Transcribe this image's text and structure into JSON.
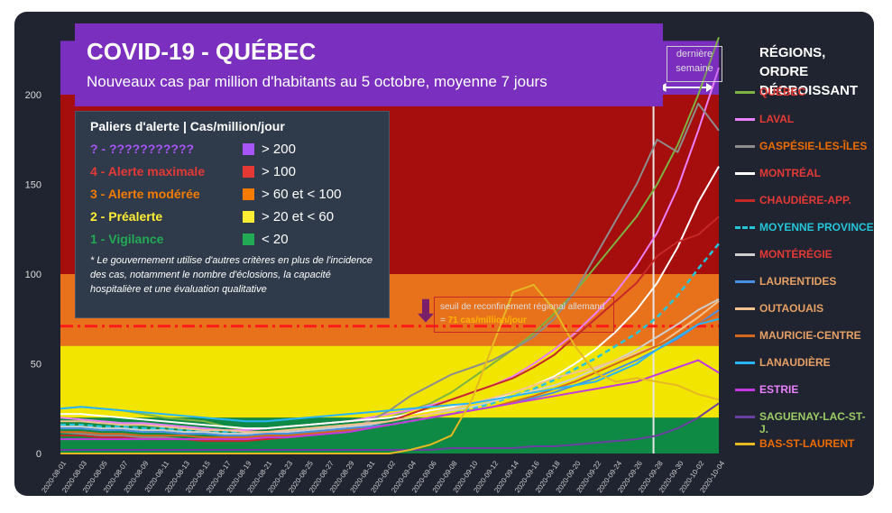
{
  "header": {
    "title": "COVID-19 - QUÉBEC",
    "subtitle": "Nouveaux cas par million d'habitants au 5 octobre, moyenne 7 jours"
  },
  "legend": {
    "title": "Paliers d'alerte | Cas/million/jour",
    "levels": [
      {
        "label": "? - ???????????",
        "threshold": "> 200",
        "color": "#a855f7"
      },
      {
        "label": "4 - Alerte maximale",
        "threshold": "> 100",
        "color": "#e53935"
      },
      {
        "label": "3 - Alerte modérée",
        "threshold": "> 60 et < 100",
        "color": "#f57c00"
      },
      {
        "label": "2 - Préalerte",
        "threshold": "> 20 et < 60",
        "color": "#ffee33"
      },
      {
        "label": "1 - Vigilance",
        "threshold": "< 20",
        "color": "#22aa55"
      }
    ],
    "note": "* Le gouvernement utilise d'autres critères en plus de l'incidence des cas, notamment le nombre d'éclosions, la capacité hospitalière et une évaluation qualitative"
  },
  "last_week_label": "dernière semaine",
  "threshold_note": {
    "text_before": "seuil de reconfinement régional allemand = ",
    "value_text": "71 cas/million/jour"
  },
  "regions_title": "RÉGIONS, ORDRE DÉCROISSANT",
  "chart_data": {
    "type": "line",
    "ylim": [
      0,
      230
    ],
    "yticks": [
      0,
      50,
      100,
      150,
      200
    ],
    "x_labels": [
      "2020-08-01",
      "2020-08-03",
      "2020-08-05",
      "2020-08-07",
      "2020-08-09",
      "2020-08-11",
      "2020-08-13",
      "2020-08-15",
      "2020-08-17",
      "2020-08-19",
      "2020-08-21",
      "2020-08-23",
      "2020-08-25",
      "2020-08-27",
      "2020-08-29",
      "2020-08-31",
      "2020-09-02",
      "2020-09-04",
      "2020-09-06",
      "2020-09-08",
      "2020-09-10",
      "2020-09-12",
      "2020-09-14",
      "2020-09-16",
      "2020-09-18",
      "2020-09-20",
      "2020-09-22",
      "2020-09-24",
      "2020-09-26",
      "2020-09-28",
      "2020-09-30",
      "2020-10-02",
      "2020-10-04"
    ],
    "alert_bands": [
      {
        "from": 0,
        "to": 20,
        "color": "#0f8a44"
      },
      {
        "from": 20,
        "to": 60,
        "color": "#f2e600"
      },
      {
        "from": 60,
        "to": 100,
        "color": "#e8721c"
      },
      {
        "from": 100,
        "to": 200,
        "color": "#a60d0d"
      },
      {
        "from": 200,
        "to": 230,
        "color": "#7b2fbe"
      }
    ],
    "threshold_line": 71,
    "last_week_start": "2020-09-28",
    "series": [
      {
        "name": "QUÉBEC",
        "color": "#7cb342",
        "text_color": "#e53935",
        "values": [
          25,
          26,
          25,
          24,
          22,
          20,
          19,
          18,
          15,
          13,
          14,
          15,
          16,
          17,
          18,
          19,
          20,
          24,
          28,
          34,
          42,
          50,
          58,
          67,
          78,
          90,
          104,
          118,
          132,
          150,
          172,
          200,
          232
        ]
      },
      {
        "name": "LAVAL",
        "color": "#ea80fc",
        "text_color": "#e53935",
        "values": [
          20,
          19,
          18,
          17,
          17,
          16,
          15,
          14,
          13,
          13,
          14,
          15,
          16,
          17,
          18,
          20,
          22,
          24,
          27,
          30,
          34,
          38,
          43,
          50,
          58,
          67,
          78,
          90,
          105,
          123,
          148,
          180,
          215
        ]
      },
      {
        "name": "GASPÉSIE-LES-ÎLES",
        "color": "#8d8d8d",
        "text_color": "#ef6c00",
        "values": [
          12,
          11,
          10,
          10,
          9,
          9,
          8,
          8,
          8,
          8,
          8,
          9,
          10,
          12,
          14,
          18,
          24,
          32,
          38,
          44,
          48,
          52,
          58,
          65,
          75,
          90,
          110,
          130,
          150,
          175,
          168,
          195,
          180
        ]
      },
      {
        "name": "MONTRÉAL",
        "color": "#ffffff",
        "text_color": "#e53935",
        "values": [
          22,
          22,
          21,
          20,
          19,
          18,
          17,
          16,
          15,
          14,
          14,
          15,
          16,
          17,
          18,
          19,
          20,
          22,
          24,
          26,
          28,
          30,
          34,
          38,
          43,
          50,
          58,
          68,
          80,
          95,
          115,
          140,
          160
        ]
      },
      {
        "name": "CHAUDIÈRE-APP.",
        "color": "#c62828",
        "text_color": "#e53935",
        "values": [
          10,
          10,
          9,
          9,
          8,
          8,
          8,
          7,
          7,
          7,
          8,
          9,
          10,
          12,
          14,
          16,
          18,
          22,
          26,
          30,
          34,
          38,
          42,
          48,
          55,
          65,
          75,
          85,
          95,
          110,
          118,
          122,
          132
        ]
      },
      {
        "name": "MOYENNE PROVINCE",
        "color": "#26c6da",
        "text_color": "#26c6da",
        "dashed": true,
        "values": [
          16,
          16,
          15,
          15,
          14,
          14,
          13,
          12,
          12,
          11,
          11,
          12,
          12,
          13,
          14,
          15,
          16,
          18,
          20,
          22,
          25,
          28,
          32,
          36,
          41,
          47,
          53,
          60,
          67,
          76,
          88,
          103,
          117
        ]
      },
      {
        "name": "MONTÉRÉGIE",
        "color": "#cfcfcf",
        "text_color": "#e53935",
        "values": [
          15,
          15,
          14,
          14,
          13,
          13,
          12,
          12,
          11,
          11,
          12,
          12,
          13,
          14,
          15,
          16,
          18,
          20,
          22,
          24,
          26,
          29,
          32,
          35,
          38,
          42,
          47,
          52,
          58,
          65,
          72,
          80,
          86
        ]
      },
      {
        "name": "LAURENTIDES",
        "color": "#4a90e2",
        "text_color": "#e8a064",
        "values": [
          14,
          14,
          13,
          13,
          12,
          12,
          11,
          11,
          10,
          10,
          11,
          11,
          12,
          13,
          14,
          15,
          16,
          18,
          20,
          22,
          24,
          26,
          28,
          31,
          34,
          38,
          42,
          47,
          52,
          58,
          64,
          72,
          80
        ]
      },
      {
        "name": "OUTAOUAIS",
        "color": "#f4c28f",
        "text_color": "#e8a064",
        "values": [
          18,
          18,
          17,
          16,
          16,
          15,
          14,
          13,
          13,
          12,
          12,
          13,
          14,
          15,
          16,
          17,
          18,
          20,
          22,
          25,
          28,
          31,
          34,
          38,
          42,
          45,
          48,
          52,
          56,
          60,
          68,
          76,
          85
        ]
      },
      {
        "name": "MAURICIE-CENTRE",
        "color": "#d2691e",
        "text_color": "#e8a064",
        "values": [
          12,
          12,
          11,
          11,
          10,
          10,
          10,
          9,
          9,
          9,
          10,
          10,
          11,
          12,
          13,
          14,
          16,
          18,
          20,
          22,
          24,
          26,
          29,
          32,
          36,
          40,
          45,
          50,
          55,
          60,
          66,
          72,
          78
        ]
      },
      {
        "name": "LANAUDIÈRE",
        "color": "#29b6f6",
        "text_color": "#e8a064",
        "values": [
          25,
          26,
          25,
          24,
          23,
          22,
          21,
          20,
          19,
          18,
          18,
          19,
          20,
          21,
          22,
          23,
          24,
          25,
          26,
          27,
          28,
          30,
          32,
          34,
          36,
          38,
          40,
          45,
          50,
          58,
          65,
          72,
          75
        ]
      },
      {
        "name": "ESTRIE",
        "color": "#c239e0",
        "text_color": "#ea80fc",
        "values": [
          8,
          8,
          8,
          8,
          8,
          8,
          8,
          8,
          8,
          8,
          9,
          9,
          10,
          11,
          12,
          14,
          16,
          18,
          20,
          22,
          24,
          26,
          28,
          30,
          32,
          34,
          36,
          38,
          40,
          44,
          48,
          52,
          45
        ]
      },
      {
        "name": "SAGUENAY-LAC-ST-J.",
        "color": "#6a3fa0",
        "text_color": "#9ccc65",
        "values": [
          2,
          2,
          2,
          2,
          2,
          2,
          2,
          2,
          2,
          2,
          2,
          2,
          2,
          2,
          2,
          2,
          2,
          2,
          2,
          3,
          3,
          3,
          3,
          4,
          4,
          5,
          6,
          7,
          8,
          10,
          14,
          20,
          28
        ]
      },
      {
        "name": "BAS-ST-LAURENT",
        "color": "#e6b822",
        "text_color": "#ef6c00",
        "values": [
          0,
          0,
          0,
          0,
          0,
          0,
          0,
          0,
          0,
          0,
          0,
          0,
          0,
          0,
          0,
          0,
          0,
          2,
          5,
          10,
          30,
          60,
          90,
          94,
          80,
          60,
          45,
          40,
          42,
          40,
          38,
          33,
          30
        ]
      }
    ]
  }
}
